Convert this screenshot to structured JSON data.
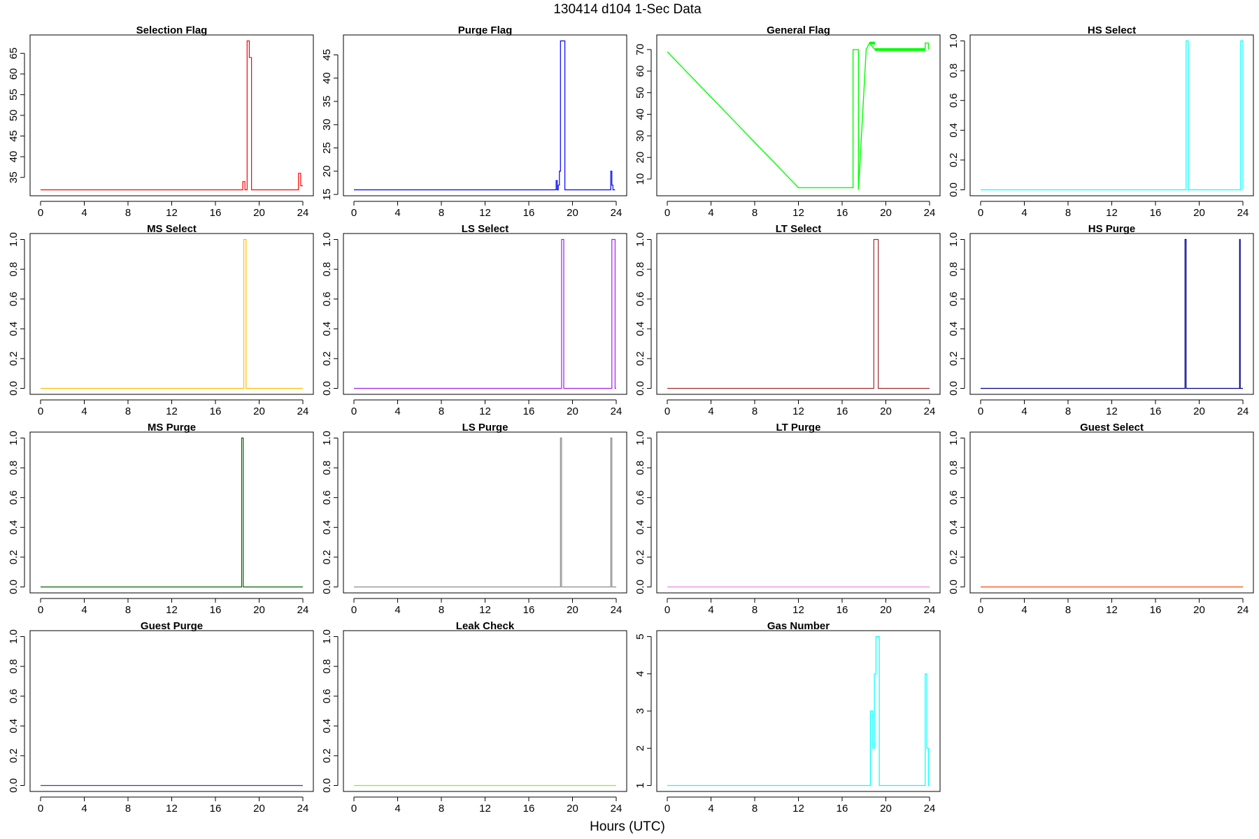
{
  "figure": {
    "title": "130414   d104   1-Sec Data",
    "xlabel": "Hours (UTC)"
  },
  "chart_data": [
    {
      "type": "line",
      "title": "Selection Flag",
      "color": "#ff0000",
      "xlim": [
        0,
        24
      ],
      "ylim": [
        32,
        68
      ],
      "xticks": [
        0,
        4,
        8,
        12,
        16,
        20,
        24
      ],
      "yticks": [
        35,
        40,
        45,
        50,
        55,
        60,
        65
      ],
      "series": [
        {
          "name": "Selection Flag",
          "x": [
            0,
            18.5,
            18.5,
            18.7,
            18.7,
            18.9,
            18.9,
            19.1,
            19.1,
            19.3,
            19.3,
            23.6,
            23.6,
            23.8,
            23.8,
            24
          ],
          "y": [
            32,
            32,
            34,
            34,
            32,
            32,
            68,
            68,
            64,
            64,
            32,
            32,
            36,
            36,
            33,
            33
          ]
        }
      ]
    },
    {
      "type": "line",
      "title": "Purge Flag",
      "color": "#0000ff",
      "xlim": [
        0,
        24
      ],
      "ylim": [
        16,
        48
      ],
      "xticks": [
        0,
        4,
        8,
        12,
        16,
        20,
        24
      ],
      "yticks": [
        15,
        20,
        25,
        30,
        35,
        40,
        45
      ],
      "series": [
        {
          "name": "Purge Flag",
          "x": [
            0,
            18.5,
            18.5,
            18.6,
            18.6,
            18.7,
            18.7,
            18.8,
            18.8,
            18.9,
            18.9,
            19.0,
            19.0,
            19.3,
            19.3,
            23.5,
            23.5,
            23.6,
            23.6,
            23.7,
            23.7,
            23.9
          ],
          "y": [
            16,
            16,
            18,
            18,
            16,
            16,
            17,
            17,
            20,
            20,
            48,
            48,
            48,
            48,
            16,
            16,
            20,
            20,
            17,
            17,
            16,
            16
          ]
        }
      ]
    },
    {
      "type": "line",
      "title": "General Flag",
      "color": "#00ff00",
      "xlim": [
        0,
        24
      ],
      "ylim": [
        5,
        74
      ],
      "xticks": [
        0,
        4,
        8,
        12,
        16,
        20,
        24
      ],
      "yticks": [
        10,
        20,
        30,
        40,
        50,
        60,
        70
      ],
      "series": [
        {
          "name": "General Flag",
          "x": [
            0,
            12,
            17,
            17,
            17.5,
            17.5,
            18.2,
            18.2,
            18.5,
            18.5,
            19,
            19,
            23.6,
            23.6,
            23.9,
            23.9
          ],
          "y": [
            69,
            6,
            6,
            70,
            70,
            5,
            70,
            70,
            73,
            73,
            70,
            70,
            70,
            73,
            73,
            70
          ]
        }
      ]
    },
    {
      "type": "line",
      "title": "HS Select",
      "color": "#00ffff",
      "xlim": [
        0,
        24
      ],
      "ylim": [
        0,
        1
      ],
      "xticks": [
        0,
        4,
        8,
        12,
        16,
        20,
        24
      ],
      "yticks": [
        0.0,
        0.2,
        0.4,
        0.6,
        0.8,
        1.0
      ],
      "series": [
        {
          "name": "HS Select",
          "x": [
            0,
            18.8,
            18.8,
            19.0,
            19.0,
            23.8,
            23.8,
            24,
            24
          ],
          "y": [
            0,
            0,
            1,
            1,
            0,
            0,
            1,
            1,
            0
          ]
        }
      ]
    },
    {
      "type": "line",
      "title": "MS Select",
      "color": "#ffc000",
      "xlim": [
        0,
        24
      ],
      "ylim": [
        0,
        1
      ],
      "xticks": [
        0,
        4,
        8,
        12,
        16,
        20,
        24
      ],
      "yticks": [
        0.0,
        0.2,
        0.4,
        0.6,
        0.8,
        1.0
      ],
      "series": [
        {
          "name": "MS Select",
          "x": [
            0,
            18.6,
            18.6,
            18.8,
            18.8,
            24
          ],
          "y": [
            0,
            0,
            1,
            1,
            0,
            0
          ]
        }
      ]
    },
    {
      "type": "line",
      "title": "LS Select",
      "color": "#a020f0",
      "xlim": [
        0,
        24
      ],
      "ylim": [
        0,
        1
      ],
      "xticks": [
        0,
        4,
        8,
        12,
        16,
        20,
        24
      ],
      "yticks": [
        0.0,
        0.2,
        0.4,
        0.6,
        0.8,
        1.0
      ],
      "series": [
        {
          "name": "LS Select",
          "x": [
            0,
            19.0,
            19.0,
            19.2,
            19.2,
            23.6,
            23.6,
            23.9,
            23.9,
            24
          ],
          "y": [
            0,
            0,
            1,
            1,
            0,
            0,
            1,
            1,
            0,
            0
          ]
        }
      ]
    },
    {
      "type": "line",
      "title": "LT Select",
      "color": "#a52a2a",
      "xlim": [
        0,
        24
      ],
      "ylim": [
        0,
        1
      ],
      "xticks": [
        0,
        4,
        8,
        12,
        16,
        20,
        24
      ],
      "yticks": [
        0.0,
        0.2,
        0.4,
        0.6,
        0.8,
        1.0
      ],
      "series": [
        {
          "name": "LT Select",
          "x": [
            0,
            18.9,
            18.9,
            19.3,
            19.3,
            24
          ],
          "y": [
            0,
            0,
            1,
            1,
            0,
            0
          ]
        }
      ]
    },
    {
      "type": "line",
      "title": "HS Purge",
      "color": "#00008b",
      "xlim": [
        0,
        24
      ],
      "ylim": [
        0,
        1
      ],
      "xticks": [
        0,
        4,
        8,
        12,
        16,
        20,
        24
      ],
      "yticks": [
        0.0,
        0.2,
        0.4,
        0.6,
        0.8,
        1.0
      ],
      "series": [
        {
          "name": "HS Purge",
          "x": [
            0,
            18.7,
            18.7,
            18.8,
            18.8,
            23.7,
            23.7,
            23.75,
            23.75,
            24
          ],
          "y": [
            0,
            0,
            1,
            1,
            0,
            0,
            1,
            1,
            0,
            0
          ]
        }
      ]
    },
    {
      "type": "line",
      "title": "MS Purge",
      "color": "#006400",
      "xlim": [
        0,
        24
      ],
      "ylim": [
        0,
        1
      ],
      "xticks": [
        0,
        4,
        8,
        12,
        16,
        20,
        24
      ],
      "yticks": [
        0.0,
        0.2,
        0.4,
        0.6,
        0.8,
        1.0
      ],
      "series": [
        {
          "name": "MS Purge",
          "x": [
            0,
            18.4,
            18.4,
            18.55,
            18.55,
            24
          ],
          "y": [
            0,
            0,
            1,
            1,
            0,
            0
          ]
        }
      ]
    },
    {
      "type": "line",
      "title": "LS Purge",
      "color": "#8c8c8c",
      "xlim": [
        0,
        24
      ],
      "ylim": [
        0,
        1
      ],
      "xticks": [
        0,
        4,
        8,
        12,
        16,
        20,
        24
      ],
      "yticks": [
        0.0,
        0.2,
        0.4,
        0.6,
        0.8,
        1.0
      ],
      "series": [
        {
          "name": "LS Purge",
          "x": [
            0,
            18.9,
            18.9,
            19.0,
            19.0,
            23.5,
            23.5,
            23.6,
            23.6,
            24
          ],
          "y": [
            0,
            0,
            1,
            1,
            0,
            0,
            1,
            1,
            0,
            0
          ]
        }
      ]
    },
    {
      "type": "line",
      "title": "LT Purge",
      "color": "#ee82ee",
      "xlim": [
        0,
        24
      ],
      "ylim": [
        0,
        1
      ],
      "xticks": [
        0,
        4,
        8,
        12,
        16,
        20,
        24
      ],
      "yticks": [
        0.0,
        0.2,
        0.4,
        0.6,
        0.8,
        1.0
      ],
      "series": [
        {
          "name": "LT Purge",
          "x": [
            0,
            24
          ],
          "y": [
            0,
            0
          ]
        }
      ]
    },
    {
      "type": "line",
      "title": "Guest Select",
      "color": "#ff4500",
      "xlim": [
        0,
        24
      ],
      "ylim": [
        0,
        1
      ],
      "xticks": [
        0,
        4,
        8,
        12,
        16,
        20,
        24
      ],
      "yticks": [
        0.0,
        0.2,
        0.4,
        0.6,
        0.8,
        1.0
      ],
      "series": [
        {
          "name": "Guest Select",
          "x": [
            0,
            24
          ],
          "y": [
            0,
            0
          ]
        }
      ]
    },
    {
      "type": "line",
      "title": "Guest Purge",
      "color": "#483d8b",
      "xlim": [
        0,
        24
      ],
      "ylim": [
        0,
        1
      ],
      "xticks": [
        0,
        4,
        8,
        12,
        16,
        20,
        24
      ],
      "yticks": [
        0.0,
        0.2,
        0.4,
        0.6,
        0.8,
        1.0
      ],
      "series": [
        {
          "name": "Guest Purge",
          "x": [
            0,
            24
          ],
          "y": [
            0,
            0
          ]
        }
      ]
    },
    {
      "type": "line",
      "title": "Leak Check",
      "color": "#7cfc00",
      "xlim": [
        0,
        24
      ],
      "ylim": [
        0,
        1
      ],
      "xticks": [
        0,
        4,
        8,
        12,
        16,
        20,
        24
      ],
      "yticks": [
        0.0,
        0.2,
        0.4,
        0.6,
        0.8,
        1.0
      ],
      "series": [
        {
          "name": "Leak Check",
          "x": [
            0,
            24
          ],
          "y": [
            0,
            0
          ]
        }
      ]
    },
    {
      "type": "line",
      "title": "Gas Number",
      "color": "#00ffff",
      "xlim": [
        0,
        24
      ],
      "ylim": [
        1,
        5
      ],
      "xticks": [
        0,
        4,
        8,
        12,
        16,
        20,
        24
      ],
      "yticks": [
        1,
        2,
        3,
        4,
        5
      ],
      "series": [
        {
          "name": "Gas Number",
          "x": [
            0,
            18.6,
            18.6,
            18.8,
            18.8,
            18.95,
            18.95,
            19.1,
            19.1,
            19.4,
            19.4,
            23.6,
            23.6,
            23.75,
            23.75,
            23.9,
            23.9,
            24
          ],
          "y": [
            1,
            1,
            3,
            3,
            2,
            2,
            4,
            4,
            5,
            5,
            1,
            1,
            4,
            4,
            2,
            2,
            1,
            1
          ]
        }
      ]
    }
  ]
}
